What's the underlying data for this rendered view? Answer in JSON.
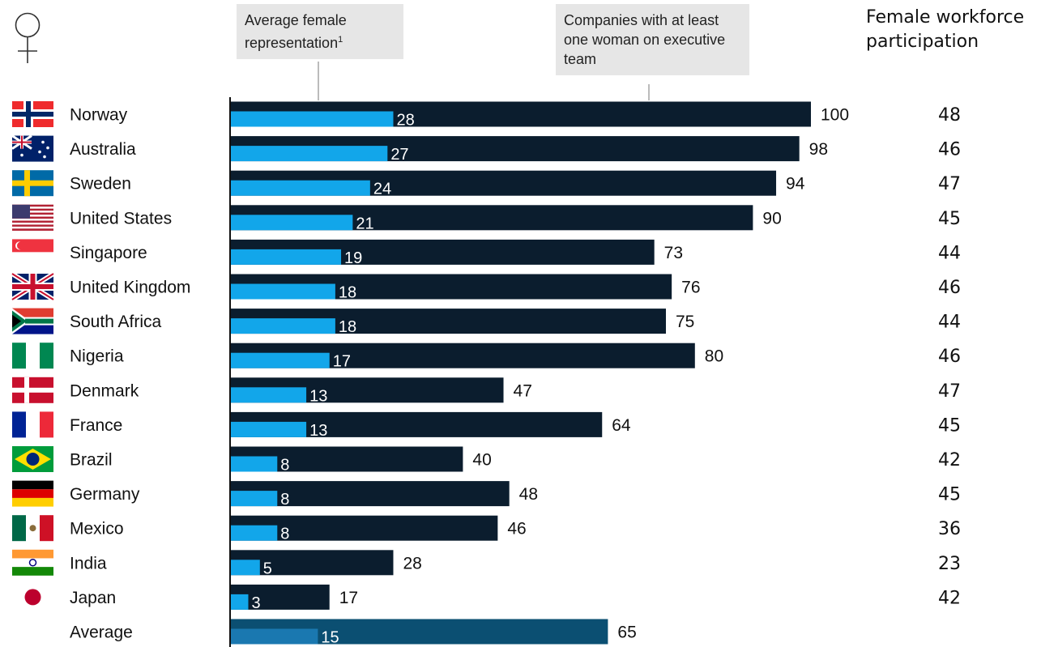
{
  "callouts": {
    "avg_female": "Average female representation",
    "avg_female_footnote": "1",
    "companies": "Companies with at least one woman on executive team"
  },
  "fwp_header": "Female workforce participation",
  "colors": {
    "dark_bar": "#0b1d2e",
    "light_bar": "#12a6ea",
    "avg_dark_bar": "#0b4f72",
    "avg_light_bar": "#1a78b0"
  },
  "chart_data": {
    "type": "bar",
    "orientation": "horizontal",
    "categories": [
      "Norway",
      "Australia",
      "Sweden",
      "United States",
      "Singapore",
      "United Kingdom",
      "South Africa",
      "Nigeria",
      "Denmark",
      "France",
      "Brazil",
      "Germany",
      "Mexico",
      "India",
      "Japan",
      "Average"
    ],
    "series": [
      {
        "name": "Average female representation",
        "values": [
          28,
          27,
          24,
          21,
          19,
          18,
          18,
          17,
          13,
          13,
          8,
          8,
          8,
          5,
          3,
          15
        ]
      },
      {
        "name": "Companies with at least one woman on executive team",
        "values": [
          100,
          98,
          94,
          90,
          73,
          76,
          75,
          80,
          47,
          64,
          40,
          48,
          46,
          28,
          17,
          65
        ]
      }
    ],
    "female_workforce_participation": [
      48,
      46,
      47,
      45,
      44,
      46,
      44,
      46,
      47,
      45,
      42,
      45,
      36,
      23,
      42
    ],
    "xlim": [
      0,
      100
    ]
  }
}
